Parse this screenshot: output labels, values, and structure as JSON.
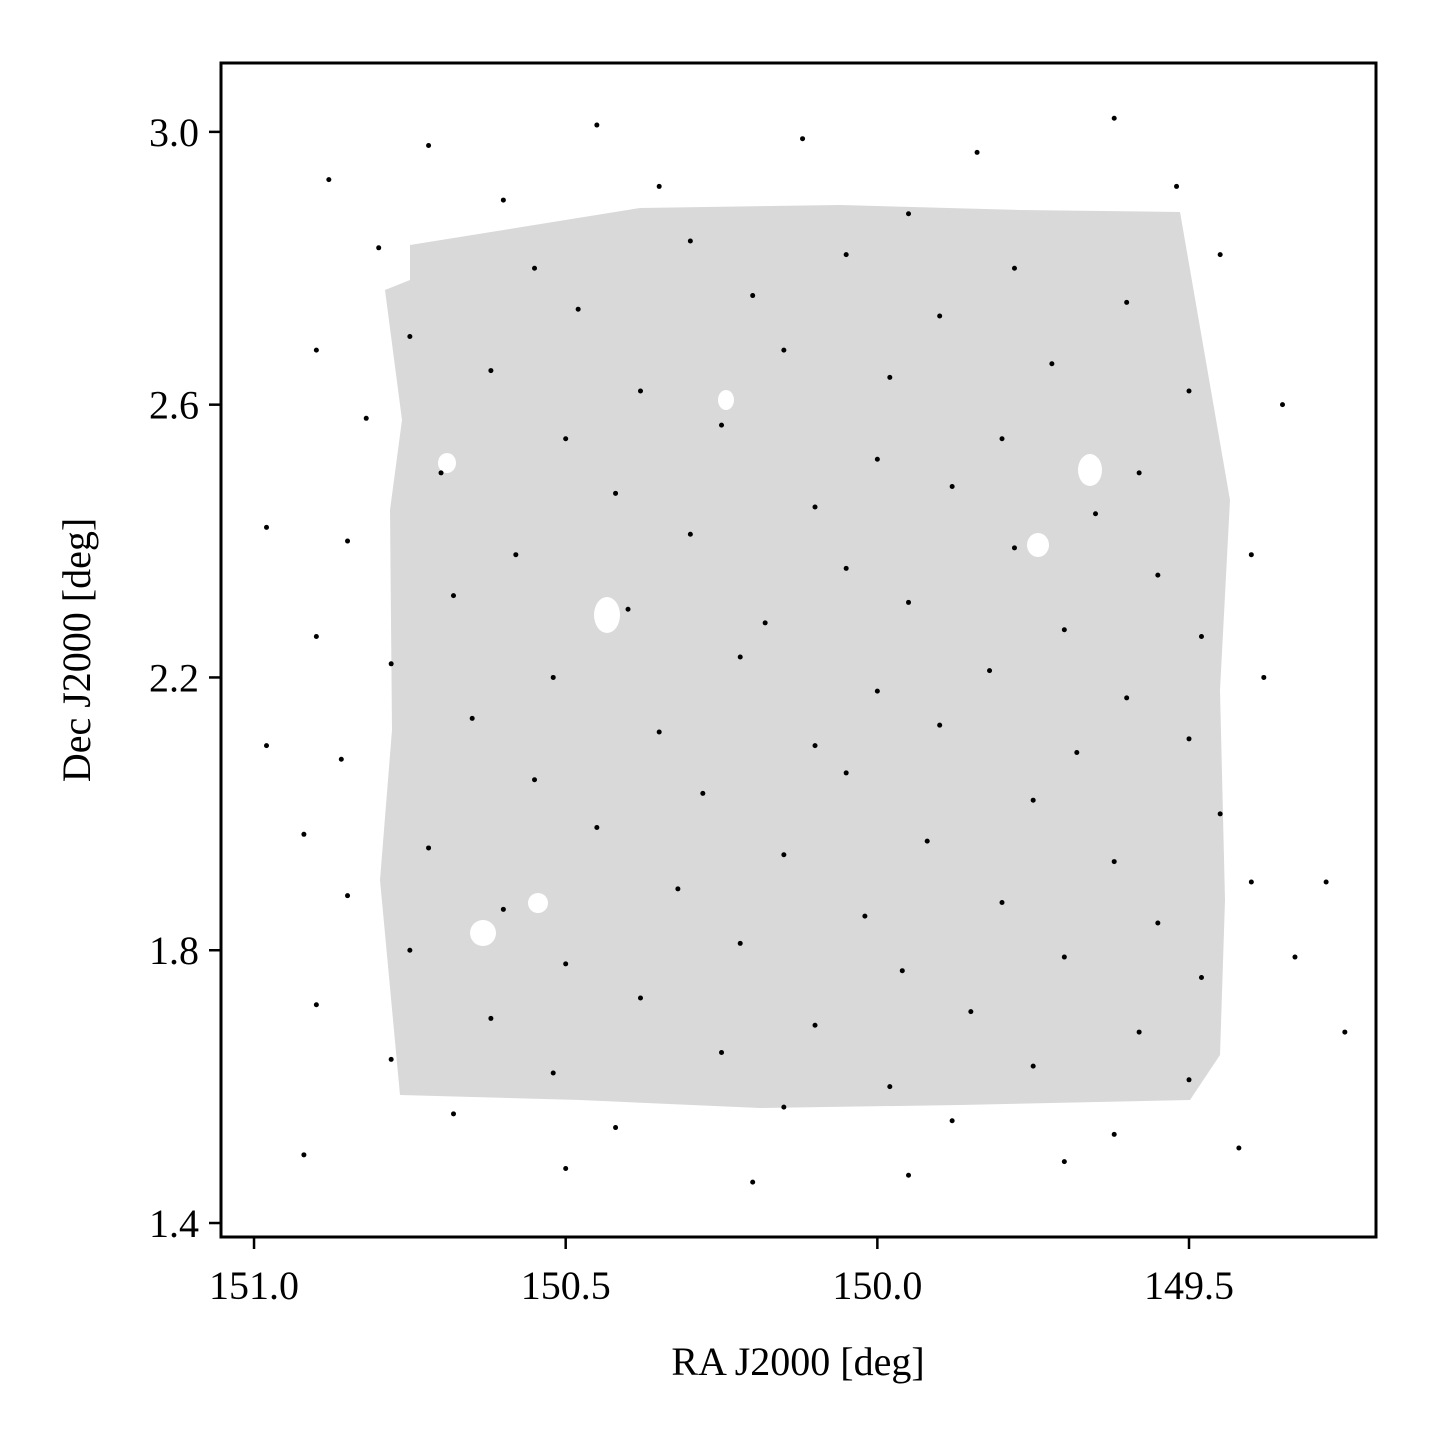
{
  "chart_data": {
    "type": "scatter",
    "xlabel": "RA J2000 [deg]",
    "ylabel": "Dec J2000 [deg]",
    "xlim": [
      151.053,
      149.2
    ],
    "ylim": [
      1.3795,
      3.101
    ],
    "xticks": [
      {
        "value": 151,
        "label": "151.0"
      },
      150.5,
      {
        "value": 150,
        "label": "150.0"
      },
      149.5
    ],
    "yticks": [
      {
        "value": 3,
        "label": "3.0"
      },
      2.6,
      2.2,
      1.8,
      1.4
    ],
    "color": "#000000",
    "x": [
      150.72,
      150.45,
      150.12,
      149.84,
      149.62,
      150.88,
      150.6,
      150.35,
      149.95,
      149.52,
      150.8,
      150.55,
      150.3,
      150.05,
      149.78,
      149.45,
      149.6,
      149.9,
      150.2,
      150.48,
      150.75,
      150.9,
      150.62,
      150.38,
      150.15,
      149.98,
      149.72,
      149.5,
      149.35,
      150.82,
      150.5,
      150.25,
      150.0,
      149.8,
      149.58,
      150.7,
      150.42,
      150.1,
      149.88,
      149.65,
      150.98,
      150.85,
      150.58,
      150.3,
      150.05,
      149.78,
      149.55,
      149.4,
      150.68,
      150.4,
      150.18,
      149.95,
      149.7,
      149.48,
      150.9,
      150.78,
      150.52,
      150.22,
      150.0,
      149.82,
      149.6,
      149.38,
      150.65,
      150.35,
      150.1,
      149.9,
      149.68,
      149.5,
      150.86,
      150.55,
      150.28,
      150.05,
      149.75,
      149.45,
      150.92,
      150.72,
      150.45,
      150.15,
      149.92,
      149.62,
      149.4,
      150.85,
      150.6,
      150.32,
      150.02,
      149.8,
      149.55,
      150.75,
      150.5,
      150.22,
      149.96,
      149.7,
      149.48,
      149.33,
      150.9,
      150.62,
      150.38,
      150.1,
      149.85,
      149.58,
      150.78,
      150.52,
      150.25,
      149.98,
      149.75,
      149.5,
      150.68,
      150.42,
      150.15,
      149.88,
      149.62,
      150.92,
      150.5,
      150.2,
      149.95,
      149.7,
      149.42,
      149.28,
      149.25,
      150.98
    ],
    "values": [
      2.98,
      3.01,
      2.99,
      2.97,
      3.02,
      2.93,
      2.9,
      2.92,
      2.88,
      2.92,
      2.83,
      2.8,
      2.84,
      2.82,
      2.8,
      2.82,
      2.75,
      2.73,
      2.76,
      2.74,
      2.7,
      2.68,
      2.65,
      2.62,
      2.68,
      2.64,
      2.66,
      2.62,
      2.6,
      2.58,
      2.55,
      2.57,
      2.52,
      2.55,
      2.5,
      2.5,
      2.47,
      2.45,
      2.48,
      2.44,
      2.42,
      2.4,
      2.38,
      2.41,
      2.36,
      2.39,
      2.35,
      2.38,
      2.32,
      2.3,
      2.28,
      2.31,
      2.27,
      2.26,
      2.26,
      2.22,
      2.2,
      2.23,
      2.18,
      2.21,
      2.17,
      2.2,
      2.14,
      2.12,
      2.1,
      2.13,
      2.09,
      2.11,
      2.08,
      2.05,
      2.03,
      2.06,
      2.02,
      2.0,
      1.97,
      1.95,
      1.98,
      1.94,
      1.96,
      1.93,
      1.9,
      1.88,
      1.86,
      1.89,
      1.85,
      1.87,
      1.84,
      1.8,
      1.78,
      1.81,
      1.77,
      1.79,
      1.76,
      1.79,
      1.72,
      1.7,
      1.73,
      1.69,
      1.71,
      1.68,
      1.64,
      1.62,
      1.65,
      1.6,
      1.63,
      1.61,
      1.56,
      1.54,
      1.57,
      1.55,
      1.53,
      1.5,
      1.48,
      1.46,
      1.47,
      1.49,
      1.51,
      1.9,
      1.68,
      2.1
    ]
  }
}
